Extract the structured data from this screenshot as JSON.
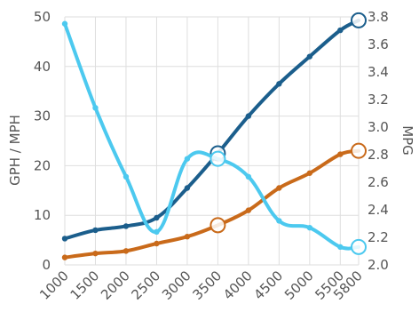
{
  "chart_data": {
    "type": "line",
    "x": [
      1000,
      1500,
      2000,
      2500,
      3000,
      3500,
      4000,
      4500,
      5000,
      5500,
      5800
    ],
    "x_tick_labels": [
      "1000",
      "1500",
      "2000",
      "2500",
      "3000",
      "3500",
      "4000",
      "4500",
      "5000",
      "5500",
      "5800"
    ],
    "ylabel_left": "GPH / MPH",
    "ylabel_right": "MPG",
    "ylim_left": [
      0,
      50
    ],
    "ylim_right": [
      2.0,
      3.8
    ],
    "y_ticks_left": [
      "0",
      "10",
      "20",
      "30",
      "40",
      "50"
    ],
    "y_ticks_right": [
      "2.0",
      "2.2",
      "2.4",
      "2.6",
      "2.8",
      "3.0",
      "3.2",
      "3.4",
      "3.6",
      "3.8"
    ],
    "grid": true,
    "series": [
      {
        "axis": "left",
        "color": "#1b5e8c",
        "values": [
          5.3,
          7.0,
          7.8,
          9.5,
          15.5,
          22.5,
          30.0,
          36.5,
          42.0,
          47.3,
          49.3
        ]
      },
      {
        "axis": "left",
        "color": "#c96a1a",
        "values": [
          1.5,
          2.3,
          2.8,
          4.3,
          5.7,
          8.0,
          11.0,
          15.5,
          18.5,
          22.3,
          23.0
        ]
      },
      {
        "axis": "right",
        "color": "#4cc9ef",
        "values": [
          3.75,
          3.14,
          2.64,
          2.24,
          2.77,
          2.77,
          2.64,
          2.32,
          2.27,
          2.13,
          2.13
        ]
      }
    ]
  }
}
